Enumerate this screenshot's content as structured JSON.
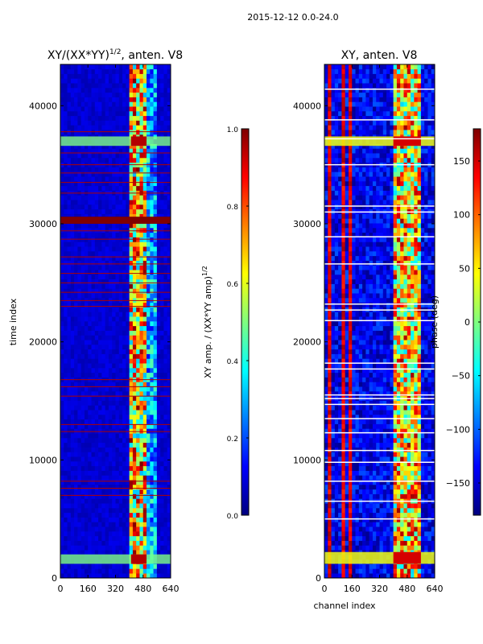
{
  "figure": {
    "suptitle": "2015-12-12 0.0-24.0"
  },
  "chart_data": [
    {
      "type": "heatmap",
      "title": "XY/(XX*YY)",
      "title_exponent": "1/2",
      "title_suffix": ", anten. V8",
      "xlabel": "",
      "ylabel": "time index",
      "xlim": [
        0,
        640
      ],
      "ylim": [
        0,
        43500
      ],
      "xticks": [
        0,
        160,
        320,
        480,
        640
      ],
      "yticks": [
        0,
        10000,
        20000,
        30000,
        40000
      ],
      "colorbar": {
        "label": "XY amp. / (XX*YY amp)",
        "label_exponent": "1/2",
        "range": [
          0.0,
          1.0
        ],
        "ticks": [
          0.0,
          0.2,
          0.4,
          0.6,
          0.8,
          1.0
        ],
        "tick_labels": [
          "0.0",
          "0.2",
          "0.4",
          "0.6",
          "0.8",
          "1.0"
        ],
        "colormap": "jet"
      },
      "features": {
        "background_value": 0.08,
        "high_value_channel_band": [
          410,
          500
        ],
        "band_value_range": [
          0.3,
          1.0
        ],
        "secondary_band": [
          500,
          560
        ],
        "saturated_time_rows": [
          [
            30000,
            30600
          ]
        ],
        "high_time_rows": [
          [
            1200,
            2000
          ],
          [
            36600,
            37400
          ]
        ],
        "flagged_rows": [
          7000,
          7600,
          8200,
          12400,
          13000,
          15400,
          16200,
          16800,
          23000,
          23500,
          24200,
          25000,
          25800,
          26600,
          27200,
          28700,
          29400,
          32600,
          33500,
          34300,
          35000,
          36000,
          37800
        ]
      }
    },
    {
      "type": "heatmap",
      "title": "XY, anten. V8",
      "xlabel": "channel index",
      "ylabel": "",
      "xlim": [
        0,
        640
      ],
      "ylim": [
        0,
        43500
      ],
      "xticks": [
        0,
        160,
        320,
        480,
        640
      ],
      "yticks": [
        0,
        10000,
        20000,
        30000,
        40000
      ],
      "colorbar": {
        "label": "phase (deg)",
        "range": [
          -180,
          180
        ],
        "ticks": [
          -150,
          -100,
          -50,
          0,
          50,
          100,
          150
        ],
        "tick_labels": [
          "−150",
          "−100",
          "−50",
          "0",
          "50",
          "100",
          "150"
        ],
        "colormap": "jet"
      },
      "features": {
        "background_value": -140,
        "red_vertical_stripes": [
          [
            20,
            45
          ],
          [
            95,
            120
          ],
          [
            140,
            165
          ]
        ],
        "high_value_channel_band": [
          400,
          560
        ],
        "white_rows": [
          5000,
          6500,
          8200,
          9800,
          10800,
          12300,
          13500,
          14700,
          15200,
          15500,
          17700,
          18200,
          21800,
          22700,
          23200,
          26600,
          28900,
          31000,
          31500,
          35000,
          37200,
          38800,
          41400
        ],
        "hot_time_rows": [
          [
            1200,
            2200
          ],
          [
            36600,
            37400
          ]
        ]
      }
    }
  ]
}
